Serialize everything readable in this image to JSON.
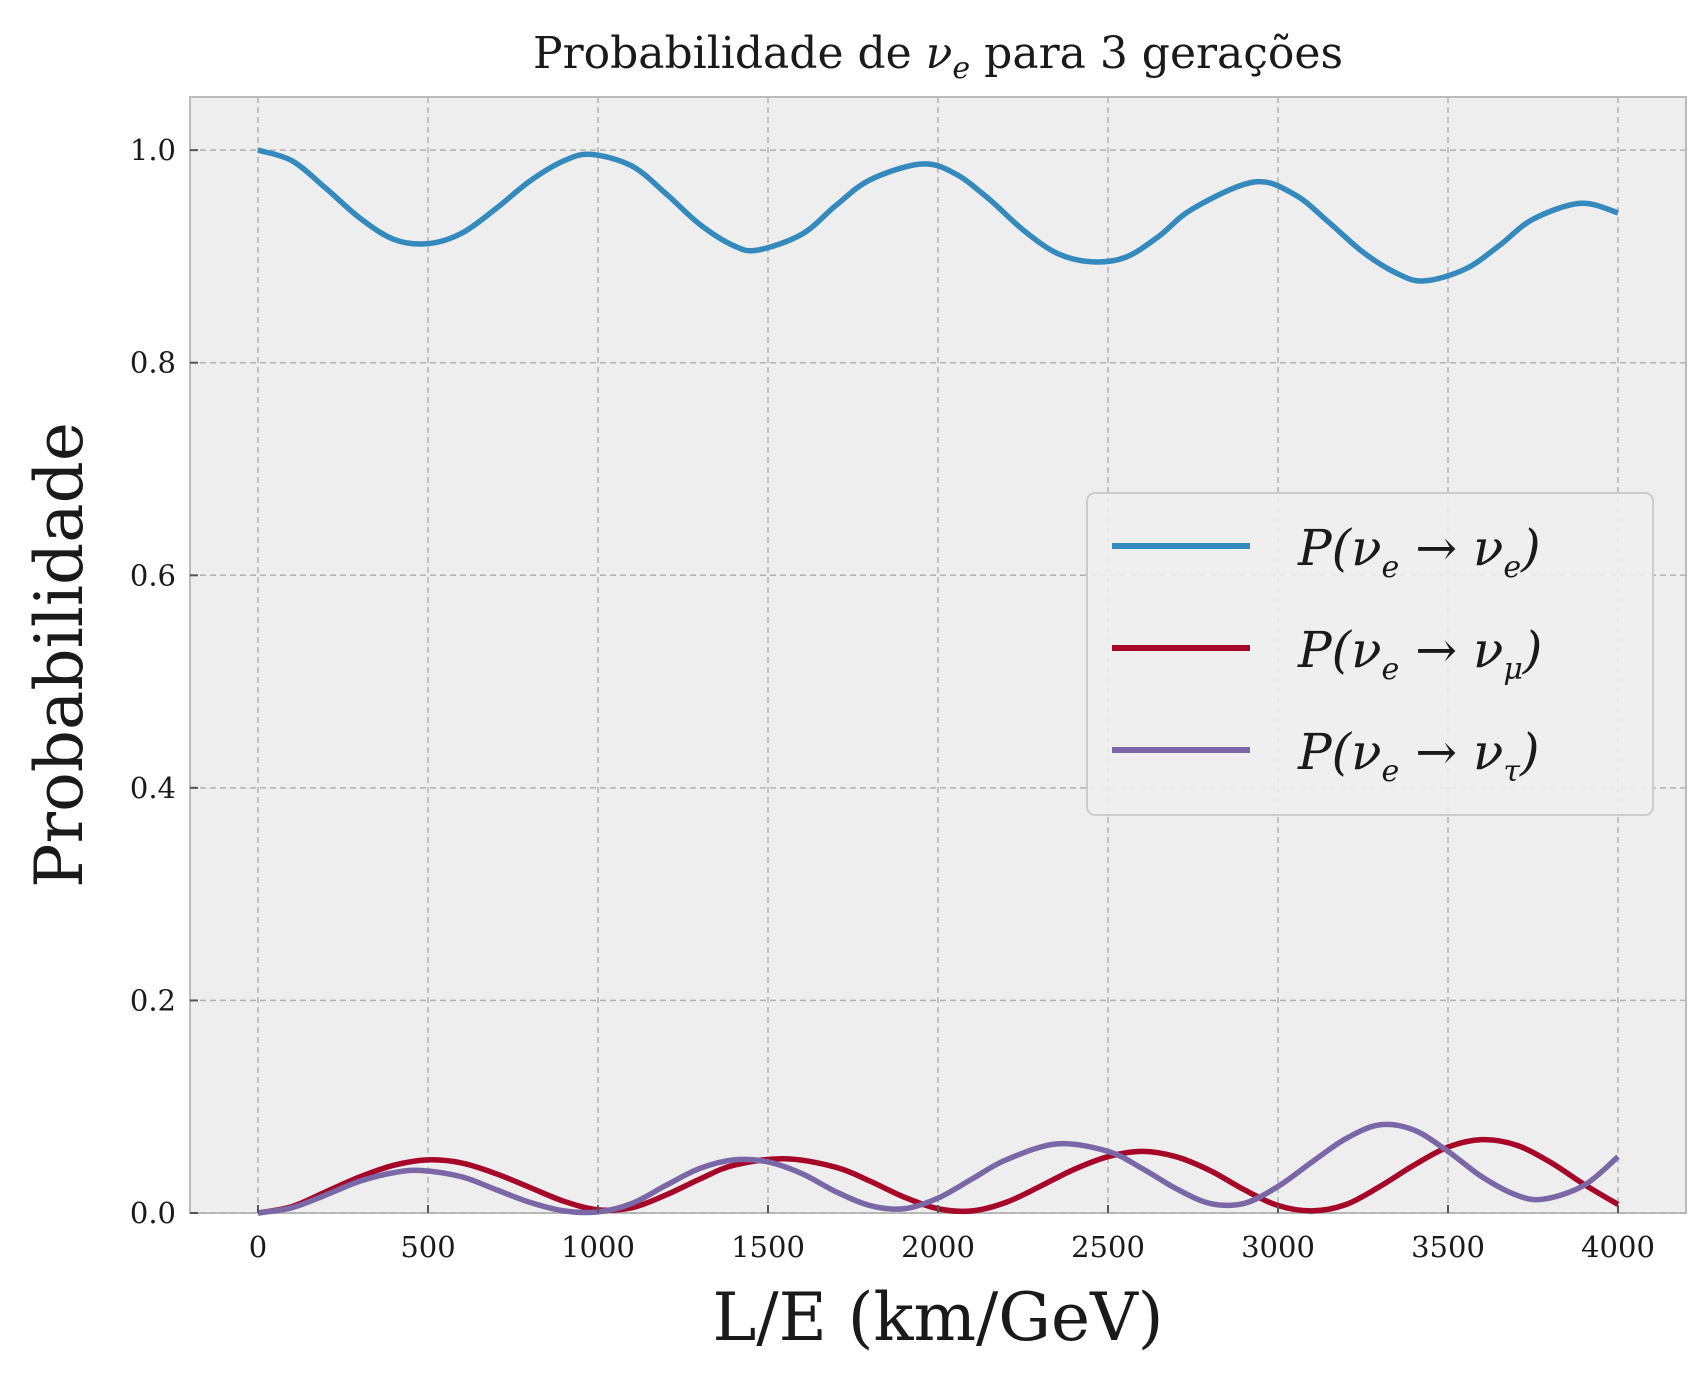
{
  "chart_data": {
    "type": "line",
    "title": "Probabilidade de νe para 3 gerações",
    "title_parts": {
      "prefix": "Probabilidade de ",
      "nu": "ν",
      "sub": "e",
      "suffix": " para 3 gerações"
    },
    "xlabel": "L/E (km/GeV)",
    "ylabel": "Probabilidade",
    "xlim": [
      -200,
      4200
    ],
    "ylim": [
      0.0,
      1.05
    ],
    "xticks": [
      0,
      500,
      1000,
      1500,
      2000,
      2500,
      3000,
      3500,
      4000
    ],
    "xtick_labels": [
      "0",
      "500",
      "1000",
      "1500",
      "2000",
      "2500",
      "3000",
      "3500",
      "4000"
    ],
    "yticks": [
      0.0,
      0.2,
      0.4,
      0.6,
      0.8,
      1.0
    ],
    "ytick_labels": [
      "0.0",
      "0.2",
      "0.4",
      "0.6",
      "0.8",
      "1.0"
    ],
    "grid": true,
    "legend_position": "center-right",
    "series": [
      {
        "name": "P(νe → νe)",
        "label_parts": {
          "prefix": "P(ν",
          "sub1": "e",
          "mid": " → ν",
          "sub2": "e",
          "suffix": ")"
        },
        "color": "#348ABD",
        "x": [
          0,
          100,
          200,
          300,
          400,
          500,
          600,
          700,
          800,
          900,
          980,
          1100,
          1200,
          1300,
          1400,
          1470,
          1600,
          1700,
          1800,
          1950,
          2050,
          2150,
          2250,
          2350,
          2450,
          2550,
          2650,
          2750,
          2930,
          3050,
          3150,
          3250,
          3350,
          3430,
          3550,
          3650,
          3750,
          3890,
          4000
        ],
        "values": [
          1.0,
          0.99,
          0.964,
          0.936,
          0.916,
          0.912,
          0.922,
          0.945,
          0.971,
          0.99,
          0.996,
          0.985,
          0.959,
          0.93,
          0.91,
          0.906,
          0.921,
          0.948,
          0.972,
          0.987,
          0.978,
          0.954,
          0.925,
          0.903,
          0.895,
          0.899,
          0.919,
          0.945,
          0.97,
          0.958,
          0.932,
          0.904,
          0.884,
          0.877,
          0.888,
          0.91,
          0.935,
          0.95,
          0.941
        ]
      },
      {
        "name": "P(νe → νμ)",
        "label_parts": {
          "prefix": "P(ν",
          "sub1": "e",
          "mid": " → ν",
          "sub2": "μ",
          "suffix": ")"
        },
        "color": "#A60628",
        "x": [
          0,
          100,
          200,
          300,
          400,
          500,
          600,
          700,
          800,
          900,
          1000,
          1100,
          1200,
          1300,
          1400,
          1550,
          1700,
          1800,
          1900,
          2000,
          2100,
          2200,
          2300,
          2400,
          2500,
          2600,
          2700,
          2800,
          2900,
          3000,
          3100,
          3200,
          3300,
          3400,
          3500,
          3600,
          3700,
          3800,
          3900,
          4000
        ],
        "values": [
          0.0,
          0.006,
          0.02,
          0.034,
          0.045,
          0.05,
          0.047,
          0.037,
          0.024,
          0.011,
          0.003,
          0.005,
          0.017,
          0.032,
          0.045,
          0.051,
          0.043,
          0.03,
          0.015,
          0.004,
          0.002,
          0.01,
          0.025,
          0.041,
          0.053,
          0.058,
          0.053,
          0.04,
          0.022,
          0.007,
          0.002,
          0.008,
          0.025,
          0.045,
          0.062,
          0.069,
          0.064,
          0.048,
          0.027,
          0.008
        ]
      },
      {
        "name": "P(νe → ντ)",
        "label_parts": {
          "prefix": "P(ν",
          "sub1": "e",
          "mid": " → ν",
          "sub2": "τ",
          "suffix": ")"
        },
        "color": "#7A68A6",
        "x": [
          0,
          100,
          200,
          300,
          400,
          480,
          600,
          700,
          800,
          900,
          1000,
          1100,
          1200,
          1300,
          1400,
          1500,
          1600,
          1700,
          1800,
          1900,
          2000,
          2100,
          2200,
          2350,
          2500,
          2600,
          2700,
          2800,
          2900,
          3000,
          3100,
          3200,
          3300,
          3400,
          3500,
          3600,
          3700,
          3780,
          3900,
          4000
        ],
        "values": [
          0.0,
          0.005,
          0.017,
          0.03,
          0.038,
          0.04,
          0.034,
          0.022,
          0.01,
          0.002,
          0.001,
          0.009,
          0.026,
          0.042,
          0.05,
          0.048,
          0.037,
          0.02,
          0.007,
          0.004,
          0.014,
          0.032,
          0.05,
          0.065,
          0.058,
          0.042,
          0.023,
          0.009,
          0.009,
          0.025,
          0.048,
          0.07,
          0.083,
          0.078,
          0.058,
          0.034,
          0.017,
          0.013,
          0.026,
          0.053
        ]
      }
    ]
  }
}
